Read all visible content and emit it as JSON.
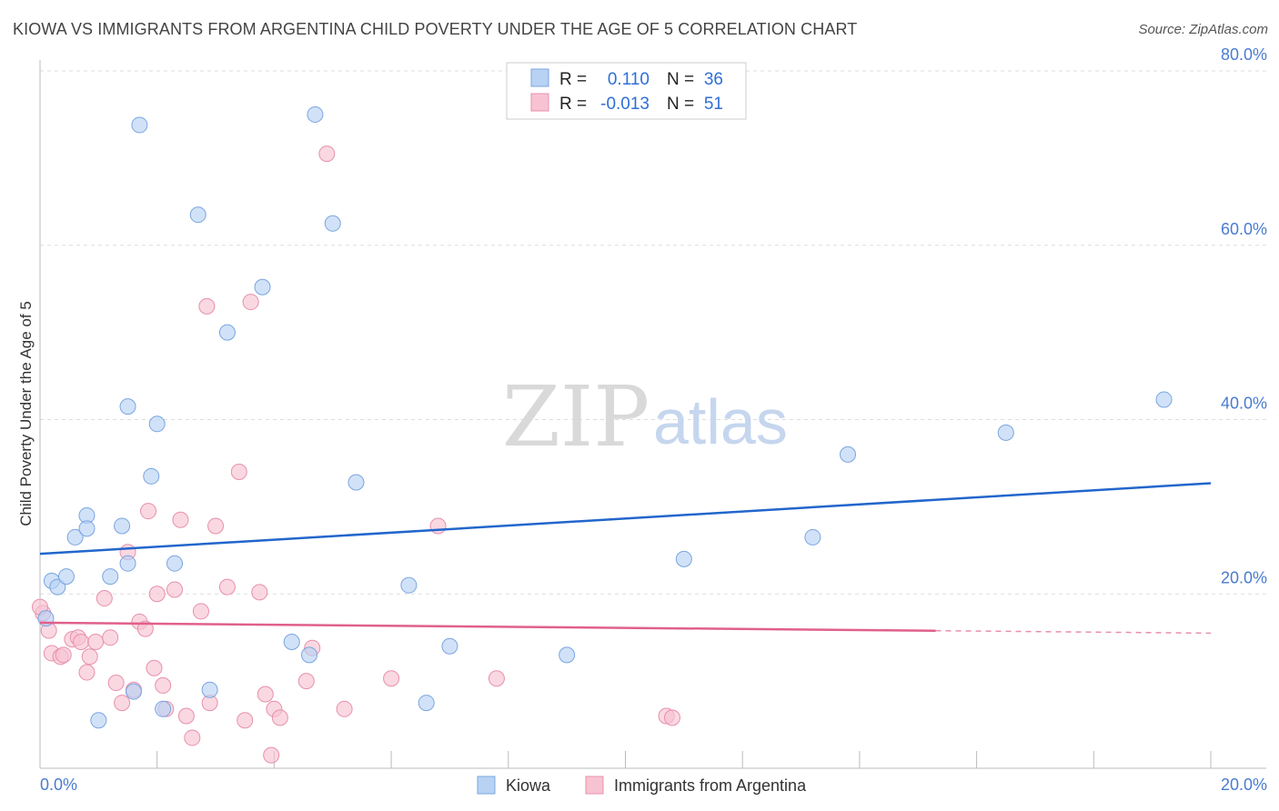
{
  "title": "KIOWA VS IMMIGRANTS FROM ARGENTINA CHILD POVERTY UNDER THE AGE OF 5 CORRELATION CHART",
  "source": "Source: ZipAtlas.com",
  "watermark": {
    "zip": "ZIP",
    "atlas": "atlas"
  },
  "colors": {
    "kiowa_fill": "#b8d2f4",
    "kiowa_stroke": "#7aa5e0",
    "kiowa_line": "#2266cc",
    "arg_fill": "#f7c3d2",
    "arg_stroke": "#e890ab",
    "arg_line": "#e0608a",
    "grid": "#dddddd",
    "tick_text": "#4a7bd0"
  },
  "legend": {
    "rows": [
      {
        "r_label": "R =",
        "r_value": "0.110",
        "n_label": "N =",
        "n_value": "36"
      },
      {
        "r_label": "R =",
        "r_value": "-0.013",
        "n_label": "N =",
        "n_value": "51"
      }
    ]
  },
  "chart_data": {
    "type": "scatter",
    "title": "KIOWA VS IMMIGRANTS FROM ARGENTINA CHILD POVERTY UNDER THE AGE OF 5 CORRELATION CHART",
    "xlabel": "",
    "ylabel": "Child Poverty Under the Age of 5",
    "xlim": [
      0,
      20
    ],
    "ylim": [
      0,
      80
    ],
    "x_tick_labels": [
      "0.0%",
      "20.0%"
    ],
    "y_ticks": [
      20,
      40,
      60,
      80
    ],
    "y_tick_labels": [
      "20.0%",
      "40.0%",
      "60.0%",
      "80.0%"
    ],
    "grid": true,
    "legend_position": "bottom",
    "series": [
      {
        "name": "Kiowa",
        "r": 0.11,
        "n": 36,
        "trend": {
          "x": [
            0,
            20
          ],
          "y": [
            24.6,
            32.7
          ],
          "solid_to": 20
        },
        "points": [
          [
            0.1,
            17.2
          ],
          [
            0.2,
            21.5
          ],
          [
            0.3,
            20.8
          ],
          [
            0.45,
            22.0
          ],
          [
            0.6,
            26.5
          ],
          [
            0.8,
            29.0
          ],
          [
            0.8,
            27.5
          ],
          [
            1.0,
            5.5
          ],
          [
            1.2,
            22.0
          ],
          [
            1.4,
            27.8
          ],
          [
            1.5,
            41.5
          ],
          [
            1.5,
            23.5
          ],
          [
            1.6,
            8.8
          ],
          [
            1.7,
            73.8
          ],
          [
            1.9,
            33.5
          ],
          [
            2.0,
            39.5
          ],
          [
            2.1,
            6.8
          ],
          [
            2.3,
            23.5
          ],
          [
            2.7,
            63.5
          ],
          [
            2.9,
            9.0
          ],
          [
            3.2,
            50.0
          ],
          [
            3.8,
            55.2
          ],
          [
            4.3,
            14.5
          ],
          [
            4.6,
            13.0
          ],
          [
            4.7,
            75.0
          ],
          [
            5.0,
            62.5
          ],
          [
            5.4,
            32.8
          ],
          [
            6.3,
            21.0
          ],
          [
            6.6,
            7.5
          ],
          [
            7.0,
            14.0
          ],
          [
            9.0,
            13.0
          ],
          [
            11.0,
            24.0
          ],
          [
            13.2,
            26.5
          ],
          [
            13.8,
            36.0
          ],
          [
            16.5,
            38.5
          ],
          [
            19.2,
            42.3
          ]
        ]
      },
      {
        "name": "Immigrants from Argentina",
        "r": -0.013,
        "n": 51,
        "trend": {
          "x": [
            0,
            20
          ],
          "y": [
            16.7,
            15.5
          ],
          "solid_to": 15.3
        },
        "points": [
          [
            0.05,
            17.8
          ],
          [
            0.15,
            15.8
          ],
          [
            0.2,
            13.2
          ],
          [
            0.35,
            12.8
          ],
          [
            0.4,
            13.0
          ],
          [
            0.55,
            14.8
          ],
          [
            0.65,
            15.0
          ],
          [
            0.7,
            14.5
          ],
          [
            0.8,
            11.0
          ],
          [
            0.85,
            12.8
          ],
          [
            0.95,
            14.5
          ],
          [
            1.1,
            19.5
          ],
          [
            1.2,
            15.0
          ],
          [
            1.3,
            9.8
          ],
          [
            1.4,
            7.5
          ],
          [
            1.5,
            24.8
          ],
          [
            1.6,
            9.0
          ],
          [
            1.7,
            16.8
          ],
          [
            1.8,
            16.0
          ],
          [
            1.85,
            29.5
          ],
          [
            1.95,
            11.5
          ],
          [
            2.0,
            20.0
          ],
          [
            2.1,
            9.5
          ],
          [
            2.15,
            6.8
          ],
          [
            2.3,
            20.5
          ],
          [
            2.4,
            28.5
          ],
          [
            2.5,
            6.0
          ],
          [
            2.6,
            3.5
          ],
          [
            2.75,
            18.0
          ],
          [
            2.85,
            53.0
          ],
          [
            2.9,
            7.5
          ],
          [
            3.0,
            27.8
          ],
          [
            3.2,
            20.8
          ],
          [
            3.4,
            34.0
          ],
          [
            3.5,
            5.5
          ],
          [
            3.6,
            53.5
          ],
          [
            3.75,
            20.2
          ],
          [
            3.85,
            8.5
          ],
          [
            3.95,
            1.5
          ],
          [
            4.0,
            6.8
          ],
          [
            4.1,
            5.8
          ],
          [
            4.55,
            10.0
          ],
          [
            4.65,
            13.8
          ],
          [
            4.9,
            70.5
          ],
          [
            5.2,
            6.8
          ],
          [
            6.0,
            10.3
          ],
          [
            6.8,
            27.8
          ],
          [
            7.8,
            10.3
          ],
          [
            10.7,
            6.0
          ],
          [
            10.8,
            5.8
          ],
          [
            0.0,
            18.5
          ]
        ]
      }
    ]
  }
}
